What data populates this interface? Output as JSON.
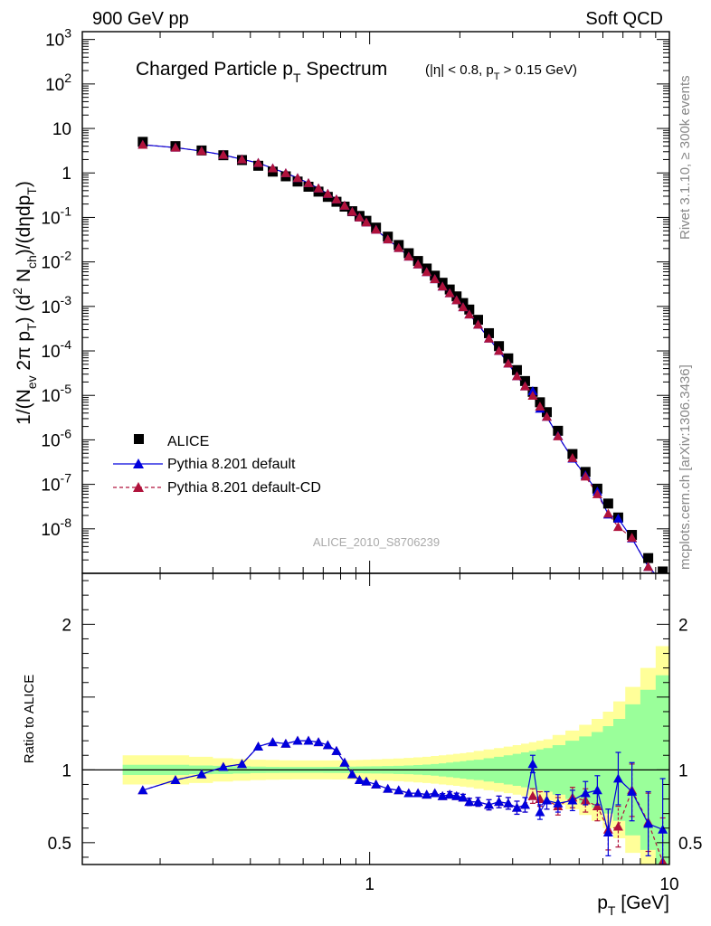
{
  "header": {
    "left": "900 GeV pp",
    "right": "Soft QCD"
  },
  "side": {
    "rivet": "Rivet 3.1.10, ≥ 300k events",
    "mcplots": "mcplots.cern.ch [arXiv:1306.3436]"
  },
  "colors": {
    "alice": "#000000",
    "default": "#0000dd",
    "default_cd": "#b0123b",
    "band_inner": "#9aff9a",
    "band_outer": "#ffff99",
    "side_text": "#888888"
  },
  "chart_data": [
    {
      "type": "scatter",
      "title_main": "Charged Particle p",
      "title_main_sub": "T",
      "title_main_tail": " Spectrum",
      "title_cut_a": "(|η| < 0.8, p",
      "title_cut_sub": "T",
      "title_cut_b": " > 0.15 GeV)",
      "ylabel": "1/(N_ev 2π p_T) (d² N_ch)/(dηdp_T)",
      "ylabel_parts": {
        "a": "1/(N",
        "a_sub": "ev",
        "b": " 2π p",
        "b_sub": "T",
        "c": ") (d",
        "c_sup": "2",
        "d": " N",
        "d_sub": "ch",
        "e": ")/(dηdp",
        "e_sub": "T",
        "f": ")"
      },
      "analysis_id": "ALICE_2010_S8706239",
      "x_scale": "log",
      "y_scale": "log",
      "xlim": [
        0.11,
        10
      ],
      "ylim": [
        1e-09,
        1500
      ],
      "yticks": [
        "10^-8",
        "10^-7",
        "10^-6",
        "10^-5",
        "10^-4",
        "10^-3",
        "10^-2",
        "10^-1",
        "1",
        "10",
        "10^2",
        "10^3"
      ],
      "legend_position": "bottom-left",
      "legend": [
        {
          "label": "ALICE",
          "marker": "square"
        },
        {
          "label": "Pythia 8.201 default",
          "marker": "triangle",
          "line": "solid"
        },
        {
          "label": "Pythia 8.201 default-CD",
          "marker": "triangle",
          "line": "dashed"
        }
      ],
      "x": [
        0.175,
        0.225,
        0.275,
        0.325,
        0.375,
        0.425,
        0.475,
        0.525,
        0.575,
        0.625,
        0.675,
        0.725,
        0.775,
        0.825,
        0.875,
        0.925,
        0.975,
        1.05,
        1.15,
        1.25,
        1.35,
        1.45,
        1.55,
        1.65,
        1.75,
        1.85,
        1.95,
        2.05,
        2.15,
        2.3,
        2.5,
        2.7,
        2.9,
        3.1,
        3.3,
        3.5,
        3.7,
        3.9,
        4.25,
        4.75,
        5.25,
        5.75,
        6.25,
        6.75,
        7.5,
        8.5,
        9.5
      ],
      "series": [
        {
          "name": "ALICE",
          "values": [
            5.0,
            4.0,
            3.2,
            2.5,
            1.95,
            1.45,
            1.07,
            0.84,
            0.64,
            0.49,
            0.38,
            0.29,
            0.225,
            0.175,
            0.138,
            0.108,
            0.084,
            0.059,
            0.037,
            0.024,
            0.0157,
            0.0105,
            0.0071,
            0.0049,
            0.0034,
            0.0024,
            0.00168,
            0.00119,
            0.00085,
            0.0005,
            0.00025,
            0.000128,
            6.8e-05,
            3.7e-05,
            2.1e-05,
            1.2e-05,
            7e-06,
            4.2e-06,
            1.6e-06,
            4.8e-07,
            1.9e-07,
            8e-08,
            3.7e-08,
            1.8e-08,
            7.3e-09,
            2.2e-09,
            1.1e-09
          ]
        },
        {
          "name": "Pythia 8.201 default",
          "values": [
            4.3,
            3.72,
            3.1,
            2.55,
            2.02,
            1.68,
            1.27,
            0.99,
            0.77,
            0.59,
            0.45,
            0.34,
            0.254,
            0.184,
            0.134,
            0.1,
            0.077,
            0.053,
            0.032,
            0.0206,
            0.0132,
            0.0088,
            0.0059,
            0.0041,
            0.0028,
            0.00198,
            0.00138,
            0.00096,
            0.00066,
            0.00039,
            0.00019,
            0.0001,
            5.2e-05,
            2.7e-05,
            1.6e-05,
            1.25e-05,
            5e-06,
            3.3e-06,
            1.23e-06,
            3.8e-07,
            1.6e-07,
            6.9e-08,
            2.1e-08,
            1.7e-08,
            6.1e-09,
            1.4e-09,
            6.5e-10
          ]
        },
        {
          "name": "Pythia 8.201 default-CD",
          "values": [
            4.3,
            3.72,
            3.1,
            2.55,
            2.02,
            1.68,
            1.27,
            0.99,
            0.77,
            0.59,
            0.45,
            0.34,
            0.254,
            0.184,
            0.134,
            0.1,
            0.077,
            0.053,
            0.032,
            0.0206,
            0.0132,
            0.0088,
            0.0059,
            0.0041,
            0.0028,
            0.00198,
            0.00138,
            0.00096,
            0.00066,
            0.00039,
            0.00019,
            0.0001,
            5.2e-05,
            2.7e-05,
            1.6e-05,
            9.8e-06,
            5.6e-06,
            3.3e-06,
            1.2e-06,
            3.9e-07,
            1.5e-07,
            6e-08,
            2.2e-08,
            1.1e-08,
            6.3e-09,
            1.4e-09,
            4.1e-10
          ]
        }
      ]
    },
    {
      "type": "line",
      "ylabel": "Ratio to ALICE",
      "xlabel": "p_T [GeV]",
      "xlabel_main": "p",
      "xlabel_sub": "T",
      "xlabel_tail": " [GeV]",
      "x_scale": "log",
      "xlim": [
        0.11,
        10
      ],
      "ylim": [
        0.35,
        2.35
      ],
      "xticks": [
        "1",
        "10"
      ],
      "yticks": [
        "0.5",
        "1",
        "2"
      ],
      "bands": {
        "inner": [
          0.035,
          0.035,
          0.03,
          0.028,
          0.025,
          0.022,
          0.021,
          0.02,
          0.02,
          0.02,
          0.02,
          0.021,
          0.021,
          0.022,
          0.022,
          0.023,
          0.024,
          0.025,
          0.026,
          0.028,
          0.03,
          0.033,
          0.036,
          0.04,
          0.045,
          0.05,
          0.055,
          0.06,
          0.065,
          0.07,
          0.08,
          0.09,
          0.1,
          0.11,
          0.12,
          0.13,
          0.14,
          0.15,
          0.17,
          0.2,
          0.23,
          0.26,
          0.3,
          0.35,
          0.45,
          0.55,
          0.65
        ],
        "outer": [
          0.1,
          0.1,
          0.09,
          0.08,
          0.075,
          0.07,
          0.068,
          0.066,
          0.065,
          0.065,
          0.065,
          0.065,
          0.066,
          0.066,
          0.067,
          0.068,
          0.07,
          0.072,
          0.075,
          0.078,
          0.082,
          0.086,
          0.09,
          0.095,
          0.1,
          0.105,
          0.11,
          0.115,
          0.12,
          0.13,
          0.14,
          0.15,
          0.16,
          0.17,
          0.18,
          0.19,
          0.2,
          0.21,
          0.24,
          0.27,
          0.31,
          0.35,
          0.4,
          0.47,
          0.57,
          0.7,
          0.85
        ]
      },
      "series": [
        {
          "name": "Pythia 8.201 default",
          "values": [
            0.86,
            0.93,
            0.97,
            1.02,
            1.04,
            1.16,
            1.19,
            1.18,
            1.2,
            1.2,
            1.19,
            1.17,
            1.13,
            1.05,
            0.97,
            0.93,
            0.92,
            0.9,
            0.87,
            0.86,
            0.84,
            0.84,
            0.83,
            0.84,
            0.82,
            0.83,
            0.82,
            0.81,
            0.78,
            0.78,
            0.76,
            0.78,
            0.77,
            0.74,
            0.76,
            1.04,
            0.71,
            0.79,
            0.77,
            0.79,
            0.84,
            0.86,
            0.57,
            0.94,
            0.85,
            0.63,
            0.59
          ],
          "errors": [
            0.006,
            0.005,
            0.005,
            0.005,
            0.005,
            0.005,
            0.005,
            0.005,
            0.005,
            0.005,
            0.005,
            0.006,
            0.006,
            0.007,
            0.007,
            0.008,
            0.008,
            0.009,
            0.01,
            0.011,
            0.012,
            0.013,
            0.014,
            0.015,
            0.017,
            0.02,
            0.02,
            0.022,
            0.025,
            0.03,
            0.035,
            0.04,
            0.04,
            0.045,
            0.05,
            0.06,
            0.05,
            0.06,
            0.06,
            0.07,
            0.08,
            0.1,
            0.16,
            0.18,
            0.2,
            0.22,
            0.35
          ]
        },
        {
          "name": "Pythia 8.201 default-CD",
          "values": [
            0.86,
            0.93,
            0.97,
            1.02,
            1.04,
            1.16,
            1.19,
            1.18,
            1.2,
            1.2,
            1.19,
            1.17,
            1.13,
            1.05,
            0.97,
            0.93,
            0.92,
            0.9,
            0.87,
            0.86,
            0.84,
            0.84,
            0.83,
            0.84,
            0.82,
            0.83,
            0.82,
            0.81,
            0.78,
            0.78,
            0.76,
            0.78,
            0.77,
            0.74,
            0.76,
            0.82,
            0.8,
            0.79,
            0.75,
            0.81,
            0.79,
            0.75,
            0.59,
            0.61,
            0.86,
            0.64,
            0.37
          ],
          "errors": [
            0.006,
            0.005,
            0.005,
            0.005,
            0.005,
            0.005,
            0.005,
            0.005,
            0.005,
            0.005,
            0.005,
            0.006,
            0.006,
            0.007,
            0.007,
            0.008,
            0.008,
            0.009,
            0.01,
            0.011,
            0.012,
            0.013,
            0.014,
            0.015,
            0.017,
            0.02,
            0.02,
            0.022,
            0.025,
            0.03,
            0.035,
            0.04,
            0.04,
            0.045,
            0.05,
            0.05,
            0.05,
            0.06,
            0.06,
            0.07,
            0.08,
            0.1,
            0.14,
            0.14,
            0.18,
            0.2,
            0.3
          ]
        }
      ]
    }
  ]
}
